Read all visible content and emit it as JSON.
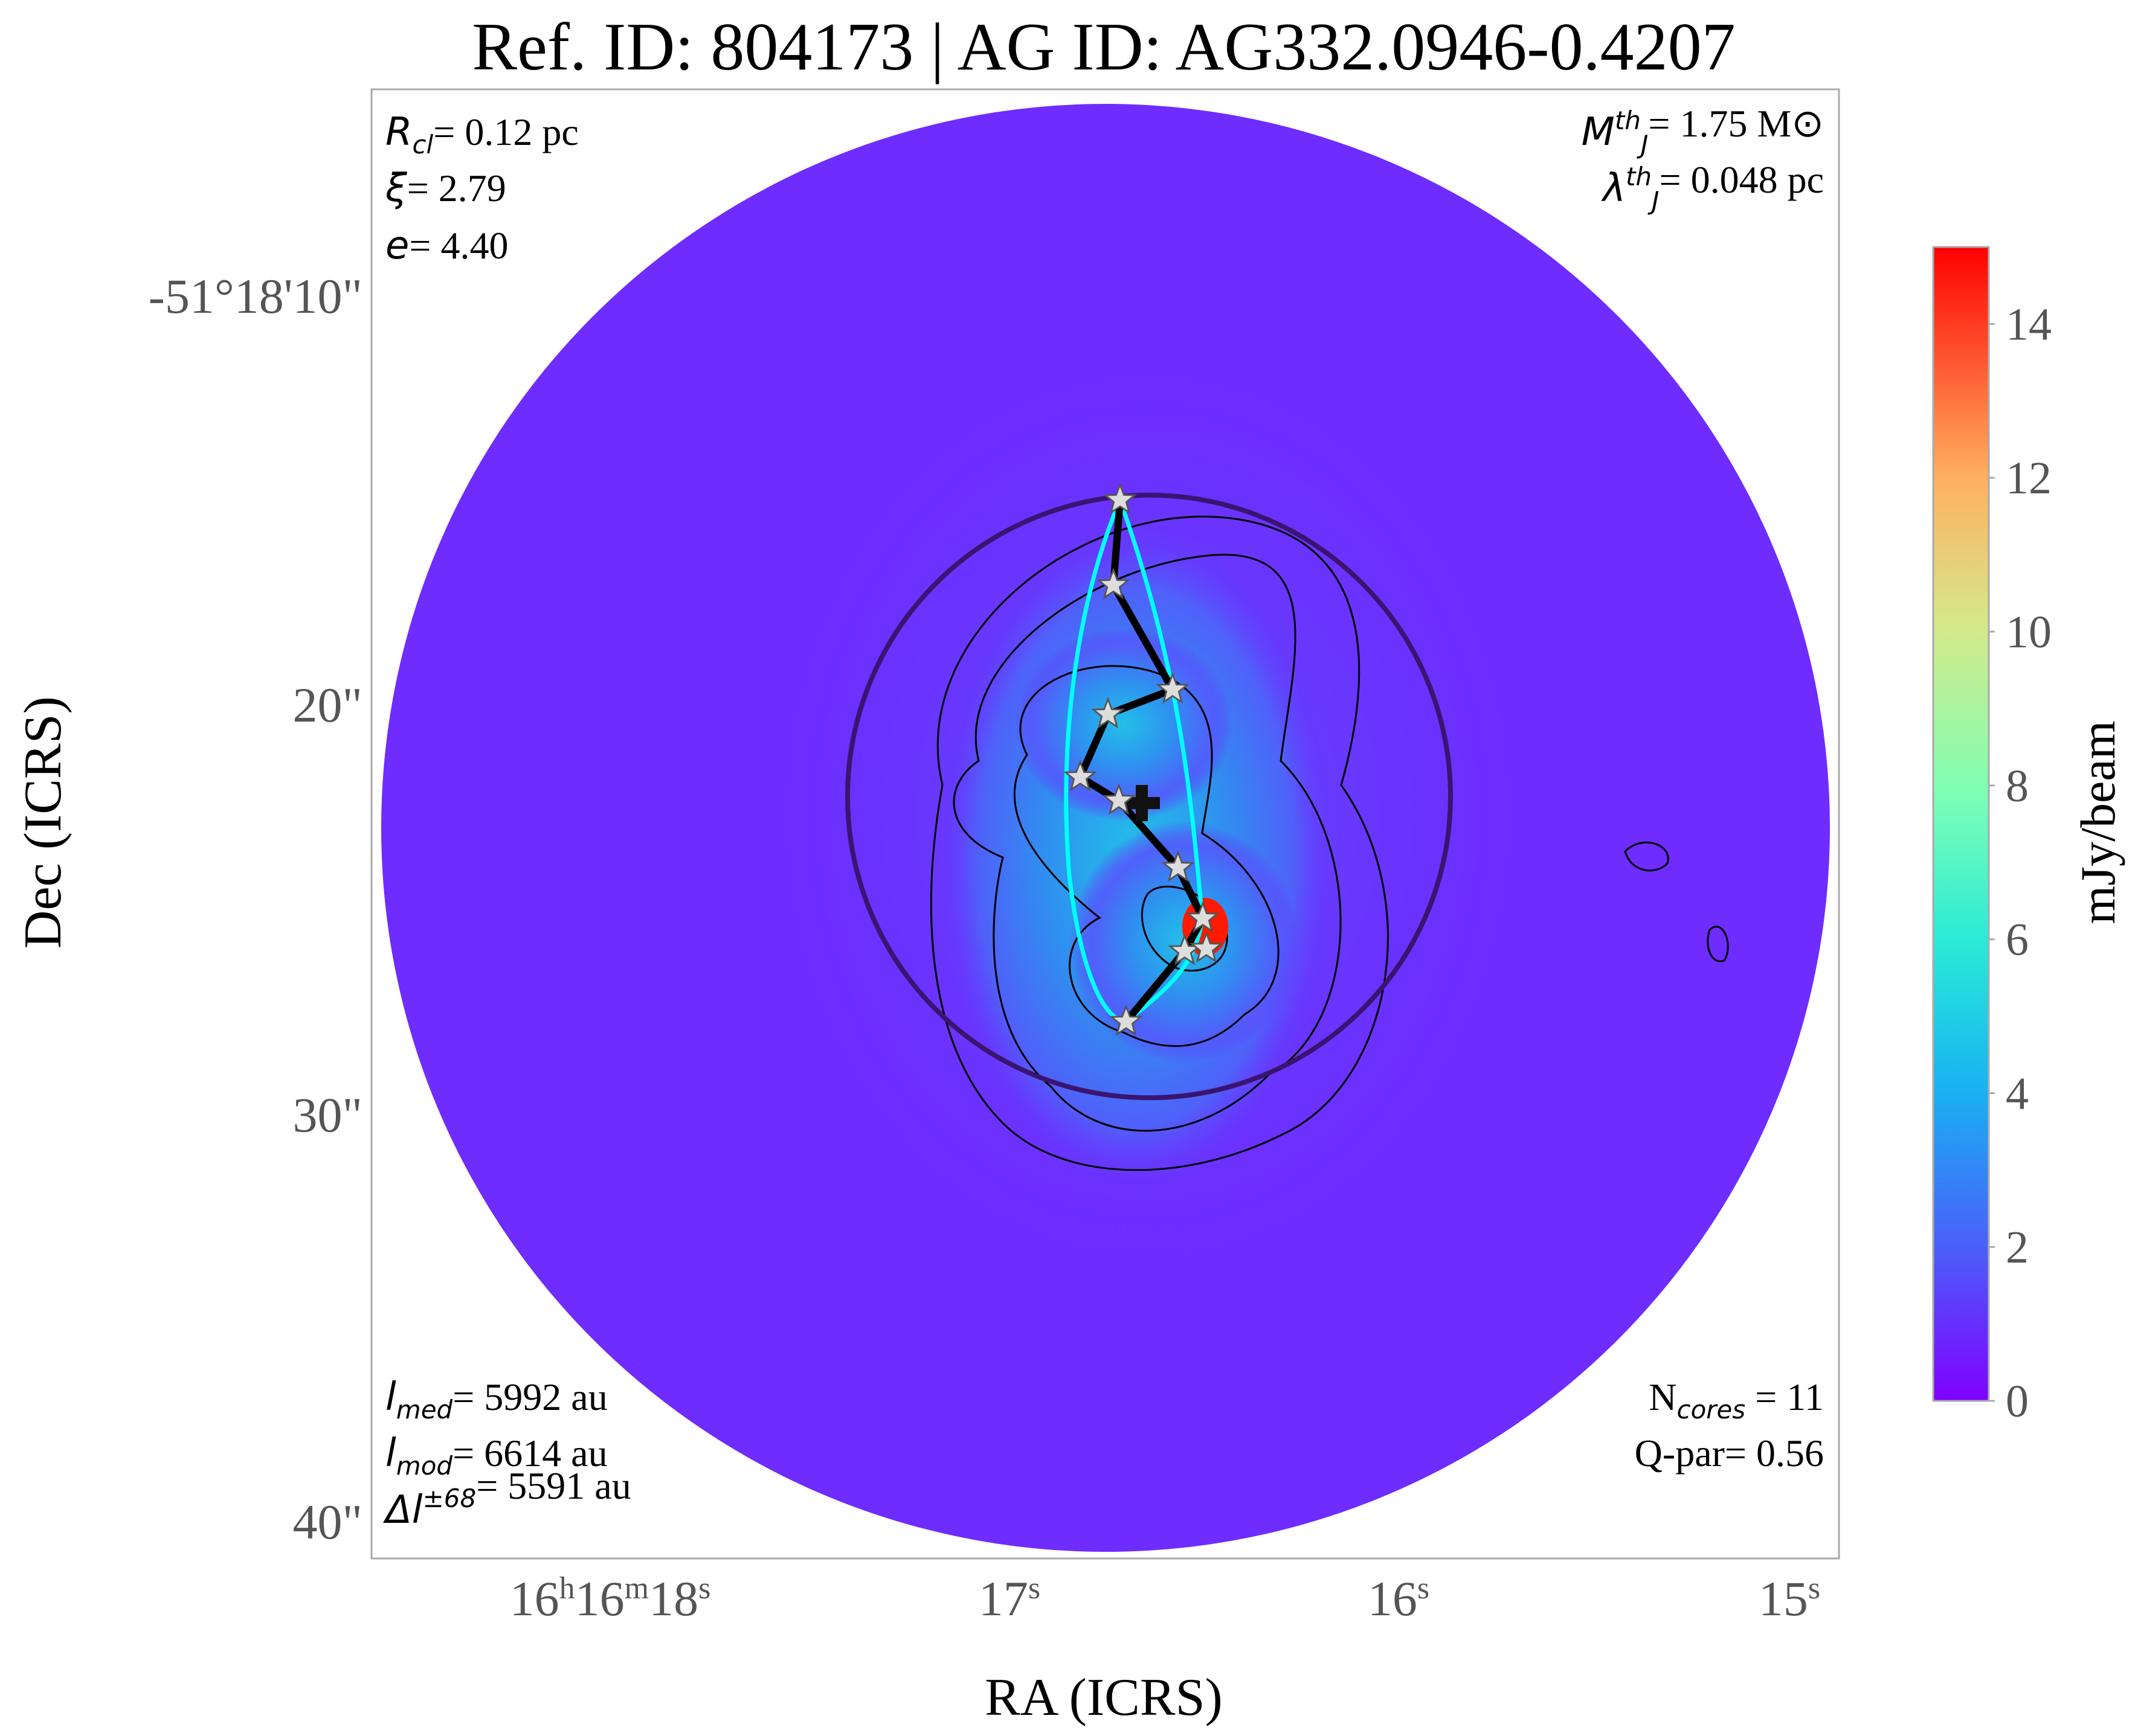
{
  "chart_data": {
    "type": "image",
    "title": "Ref. ID: 804173 | AG ID: AG332.0946-0.4207",
    "xlabel": "RA (ICRS)",
    "ylabel": "Dec (ICRS)",
    "xtick_labels": [
      "16h16m18s",
      "17s",
      "16s",
      "15s"
    ],
    "ytick_labels": [
      "-51°18'10\"",
      "20\"",
      "30\"",
      "40\""
    ],
    "colorbar": {
      "label": "mJy/beam",
      "clim": [
        0,
        15
      ],
      "ticks": [
        0,
        2,
        4,
        6,
        8,
        10,
        12,
        14
      ]
    },
    "annotations": {
      "top_left": [
        {
          "symbol": "R",
          "sub": "cl",
          "text": "= 0.12 pc"
        },
        {
          "symbol": "ξ",
          "text": "= 2.79"
        },
        {
          "symbol": "e",
          "text": "= 4.40"
        }
      ],
      "top_right": [
        {
          "symbol": "M",
          "sup": "th",
          "sub": "J",
          "text": "= 1.75 M⊙"
        },
        {
          "symbol": "λ",
          "sup": "th",
          "sub": "J",
          "text": "= 0.048 pc"
        }
      ],
      "bottom_left": [
        {
          "symbol": "l",
          "sub": "med",
          "text": "= 5992 au"
        },
        {
          "symbol": "l",
          "sub": "mod",
          "text": "= 6614 au"
        },
        {
          "symbol": "Δl",
          "sup": "±68",
          "text": "= 5591 au"
        }
      ],
      "bottom_right": [
        {
          "text": "N",
          "sub": "cores",
          "text2": " = 11"
        },
        {
          "text": "Q-par= 0.56"
        }
      ]
    }
  }
}
